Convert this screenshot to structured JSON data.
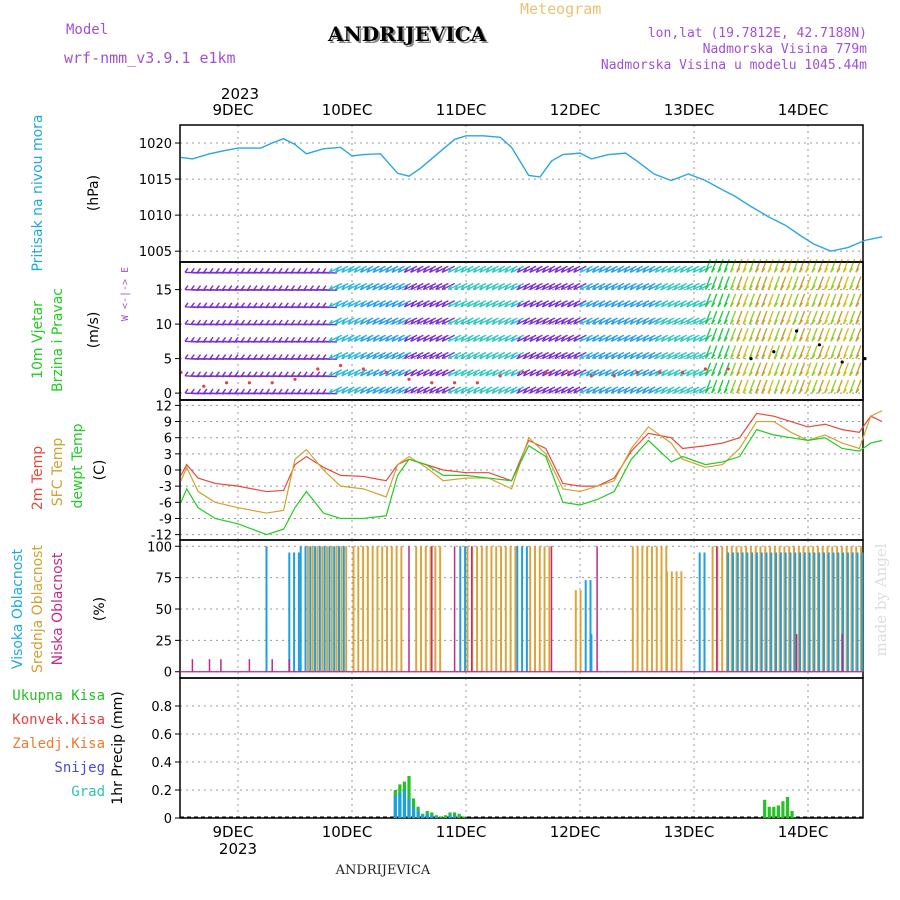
{
  "header": {
    "model_label": "Model",
    "model_name": "wrf-nmm_v3.9.1  e1km",
    "station": "ANDRIJEVICA",
    "meteogram": "Meteogram",
    "lonlat": "lon,lat (19.7812E, 42.7188N)",
    "elevation": "Nadmorska Visina 779m",
    "model_elevation": "Nadmorska Visina u modelu 1045.44m",
    "watermark": "made by Angel",
    "footer_station": "ANDRIJEVICA",
    "year": "2023"
  },
  "colors": {
    "pressure": "#2aa7df",
    "temp2m": "#e8483c",
    "sfc": "#d4a030",
    "dewpt": "#22cc22",
    "high_cloud": "#1e9fe0",
    "mid_cloud": "#dca53c",
    "low_cloud": "#c0288a",
    "wind_purple": "#7a2fd0",
    "precip_total": "#22c422",
    "precip_conv": "#e84040",
    "precip_frz": "#f07a30",
    "snow": "#4a4ad8",
    "grad": "#2ac4b4"
  },
  "axis_dates": [
    "9DEC",
    "10DEC",
    "11DEC",
    "12DEC",
    "13DEC",
    "14DEC"
  ],
  "panels": {
    "pressure": {
      "label": "Pritisak na nivou mora",
      "unit": "(hPa)"
    },
    "wind": {
      "label1": "10m Vjetar",
      "label2": "Brzina i Pravac",
      "unit": "(m/s)",
      "compass": "W  <-|->  E"
    },
    "temp": {
      "label1": "2m Temp",
      "label2": "SFC Temp",
      "label3": "dewpt Temp",
      "unit": "(C)"
    },
    "cloud": {
      "label1": "Visoka Oblacnost",
      "label2": "Srednja Oblacnost",
      "label3": "Niska Oblacnost",
      "unit": "(%)"
    },
    "precip": {
      "legend": [
        "Ukupna Kisa",
        "Konvek.Kisa",
        "Zaledj.Kisa",
        "Snijeg",
        "Grad"
      ],
      "unit": "1hr Precip (mm)"
    }
  },
  "chart_data": [
    {
      "type": "line",
      "title": "",
      "ylabel": "Pritisak na nivou mora (hPa)",
      "ylim": [
        1003.5,
        1022.5
      ],
      "yticks": [
        1005,
        1010,
        1015,
        1020
      ],
      "grid": true,
      "x_unit": "days since 9DEC 00h",
      "series": [
        {
          "name": "Pritisak na nivou mora",
          "x": [
            -0.5,
            -0.4,
            -0.25,
            -0.1,
            0,
            0.2,
            0.3,
            0.4,
            0.5,
            0.6,
            0.75,
            0.9,
            1.0,
            1.1,
            1.25,
            1.4,
            1.5,
            1.6,
            1.75,
            1.9,
            2.0,
            2.15,
            2.3,
            2.4,
            2.55,
            2.65,
            2.75,
            2.85,
            3.0,
            3.1,
            3.25,
            3.4,
            3.5,
            3.65,
            3.8,
            3.95,
            4.1,
            4.25,
            4.35,
            4.5,
            4.65,
            4.8,
            4.95,
            5.05,
            5.2,
            5.35,
            5.5,
            5.65
          ],
          "y": [
            1018,
            1017.8,
            1018.5,
            1019,
            1019.3,
            1019.3,
            1020,
            1020.6,
            1019.8,
            1018.5,
            1019.2,
            1019.4,
            1018.2,
            1018.4,
            1018.5,
            1015.8,
            1015.4,
            1016.5,
            1018.5,
            1020.5,
            1021,
            1021,
            1020.8,
            1019.4,
            1015.5,
            1015.3,
            1017.5,
            1018.4,
            1018.6,
            1017.8,
            1018.4,
            1018.6,
            1017.5,
            1015.7,
            1014.8,
            1015.7,
            1014.8,
            1013.5,
            1012.7,
            1011.2,
            1009.8,
            1008.6,
            1007,
            1006,
            1005,
            1005.5,
            1006.5,
            1007
          ]
        }
      ]
    },
    {
      "type": "scatter",
      "title": "",
      "ylabel": "10m Vjetar Brzina i Pravac (m/s)",
      "ylim": [
        -1,
        19
      ],
      "yticks": [
        0,
        5,
        10,
        15
      ],
      "grid": true,
      "series": [
        {
          "name": "10m Vjetar",
          "x": [
            -0.5,
            -0.3,
            -0.1,
            0.1,
            0.3,
            0.5,
            0.7,
            0.9,
            1.1,
            1.3,
            1.5,
            1.7,
            1.9,
            2.1,
            2.3,
            2.5,
            2.7,
            2.9,
            3.1,
            3.3,
            3.5,
            3.7,
            3.9,
            4.1,
            4.3,
            4.5,
            4.7,
            4.9,
            5.1,
            5.3,
            5.5
          ],
          "y": [
            3,
            1,
            1.5,
            1.5,
            1.5,
            2,
            3.5,
            4,
            3.5,
            3,
            2,
            1.5,
            1.5,
            1.5,
            2.5,
            3,
            3,
            3,
            2.5,
            2.5,
            3,
            3,
            3,
            3.5,
            3.5,
            5,
            6,
            9,
            7,
            4.5,
            5
          ]
        }
      ]
    },
    {
      "type": "line",
      "title": "",
      "ylabel": "(C)",
      "ylim": [
        -13,
        13
      ],
      "yticks": [
        -12,
        -9,
        -6,
        -3,
        0,
        3,
        6,
        9,
        12
      ],
      "grid": true,
      "series": [
        {
          "name": "2m Temp",
          "x": [
            -0.5,
            -0.45,
            -0.35,
            -0.2,
            0,
            0.25,
            0.4,
            0.5,
            0.6,
            0.75,
            0.9,
            1.1,
            1.3,
            1.4,
            1.5,
            1.65,
            1.8,
            2.0,
            2.2,
            2.4,
            2.55,
            2.7,
            2.85,
            3.0,
            3.15,
            3.3,
            3.45,
            3.6,
            3.8,
            3.9,
            4.1,
            4.25,
            4.4,
            4.55,
            4.7,
            4.85,
            5.0,
            5.15,
            5.3,
            5.45,
            5.55,
            5.65
          ],
          "y": [
            -1,
            1,
            -1.5,
            -2.5,
            -3,
            -4,
            -3.8,
            1,
            2.5,
            0.5,
            -1,
            -1.2,
            -2,
            1,
            2,
            1,
            0,
            -0.5,
            -0.5,
            -2,
            5.5,
            4,
            -2.5,
            -3,
            -3,
            -1.5,
            3.5,
            6.8,
            6,
            4,
            4.5,
            5,
            6,
            10.5,
            10,
            9,
            8,
            8.5,
            7.5,
            7,
            10,
            9
          ]
        },
        {
          "name": "SFC Temp",
          "x": [
            -0.5,
            -0.45,
            -0.35,
            -0.2,
            0,
            0.25,
            0.4,
            0.5,
            0.6,
            0.75,
            0.9,
            1.1,
            1.3,
            1.4,
            1.5,
            1.65,
            1.8,
            2.0,
            2.2,
            2.4,
            2.55,
            2.7,
            2.85,
            3.0,
            3.15,
            3.3,
            3.45,
            3.6,
            3.8,
            3.9,
            4.1,
            4.25,
            4.4,
            4.55,
            4.7,
            4.85,
            5.0,
            5.15,
            5.3,
            5.45,
            5.55,
            5.65
          ],
          "y": [
            -2,
            0.5,
            -4,
            -6,
            -7,
            -8,
            -7.5,
            2,
            3.8,
            0,
            -3,
            -3.5,
            -5,
            1,
            2.5,
            0.5,
            -2,
            -1.5,
            -1.5,
            -3.5,
            6,
            3,
            -3.5,
            -4,
            -3,
            -2,
            4,
            8,
            5,
            2,
            0.5,
            1,
            4,
            9,
            9,
            7,
            5.5,
            6.5,
            5,
            4,
            10,
            11
          ]
        },
        {
          "name": "dewpt Temp",
          "x": [
            -0.5,
            -0.45,
            -0.35,
            -0.2,
            0,
            0.25,
            0.4,
            0.5,
            0.6,
            0.75,
            0.9,
            1.1,
            1.3,
            1.4,
            1.5,
            1.65,
            1.8,
            2.0,
            2.2,
            2.4,
            2.55,
            2.7,
            2.85,
            3.0,
            3.15,
            3.3,
            3.45,
            3.6,
            3.8,
            3.9,
            4.1,
            4.25,
            4.4,
            4.55,
            4.7,
            4.85,
            5.0,
            5.15,
            5.3,
            5.45,
            5.55,
            5.65
          ],
          "y": [
            -6,
            -3.5,
            -7,
            -9,
            -10,
            -12,
            -11,
            -7,
            -4,
            -8,
            -9,
            -9,
            -8.5,
            -1,
            2,
            1,
            -1,
            -1,
            -1.5,
            -2,
            4.5,
            2.5,
            -6,
            -6.5,
            -5.5,
            -4,
            2,
            5.5,
            1.5,
            2.5,
            1,
            1.5,
            2.5,
            7.5,
            6.5,
            6,
            5.5,
            6,
            4,
            3.5,
            5,
            5.5
          ]
        }
      ]
    },
    {
      "type": "bar",
      "title": "",
      "ylabel": "(%)",
      "ylim": [
        -5,
        105
      ],
      "yticks": [
        0,
        25,
        50,
        75,
        100
      ],
      "grid": true,
      "series": [
        {
          "name": "Visoka Oblacnost",
          "segments": [
            [
              0.25,
              0.27,
              100
            ],
            [
              0.45,
              0.55,
              95
            ],
            [
              0.55,
              0.95,
              100
            ],
            [
              1.95,
              2.0,
              100
            ],
            [
              2.45,
              2.55,
              100
            ],
            [
              3.05,
              3.1,
              73
            ],
            [
              3.1,
              3.12,
              30
            ],
            [
              4.05,
              4.12,
              95
            ],
            [
              4.3,
              5.7,
              95
            ]
          ]
        },
        {
          "name": "Srednja Oblacnost",
          "segments": [
            [
              0.6,
              0.95,
              100
            ],
            [
              1.0,
              1.45,
              100
            ],
            [
              1.55,
              1.8,
              100
            ],
            [
              2.0,
              2.45,
              100
            ],
            [
              2.55,
              2.75,
              100
            ],
            [
              2.95,
              3.0,
              65
            ],
            [
              3.45,
              3.75,
              100
            ],
            [
              3.75,
              3.9,
              80
            ],
            [
              4.15,
              5.7,
              100
            ]
          ]
        },
        {
          "name": "Niska Oblacnost",
          "x": [
            -0.4,
            -0.25,
            -0.15,
            0.1,
            0.3,
            0.45,
            1.5,
            1.7,
            1.9,
            2.05,
            2.75,
            3.15,
            4.2,
            4.9,
            5.3
          ],
          "y": [
            10,
            10,
            10,
            10,
            10,
            10,
            100,
            100,
            100,
            100,
            100,
            100,
            100,
            30,
            30
          ]
        }
      ]
    },
    {
      "type": "bar",
      "title": "",
      "ylabel": "1hr Precip (mm)",
      "ylim": [
        0,
        1.0
      ],
      "yticks": [
        0,
        0.2,
        0.4,
        0.6,
        0.8
      ],
      "grid": true,
      "series": [
        {
          "name": "Ukupna Kisa",
          "x": [
            1.38,
            1.42,
            1.46,
            1.5,
            1.54,
            1.58,
            1.62,
            1.66,
            1.7,
            1.74,
            1.78,
            1.82,
            1.86,
            1.9,
            1.94,
            1.98,
            4.62,
            4.66,
            4.7,
            4.74,
            4.78,
            4.82,
            4.86
          ],
          "y": [
            0.2,
            0.24,
            0.26,
            0.3,
            0.14,
            0.08,
            0.03,
            0.05,
            0.04,
            0.02,
            0.01,
            0.02,
            0.04,
            0.04,
            0.03,
            0.01,
            0.13,
            0.08,
            0.08,
            0.09,
            0.12,
            0.15,
            0.05
          ]
        },
        {
          "name": "Snijeg",
          "x": [
            1.38,
            1.42,
            1.46,
            1.5,
            1.54,
            1.58,
            1.62,
            1.66,
            1.7,
            1.74,
            1.86,
            1.9
          ],
          "y": [
            0.16,
            0.18,
            0.2,
            0.14,
            0.08,
            0.05,
            0.02,
            0.03,
            0.02,
            0.01,
            0.02,
            0.02
          ]
        }
      ]
    }
  ]
}
